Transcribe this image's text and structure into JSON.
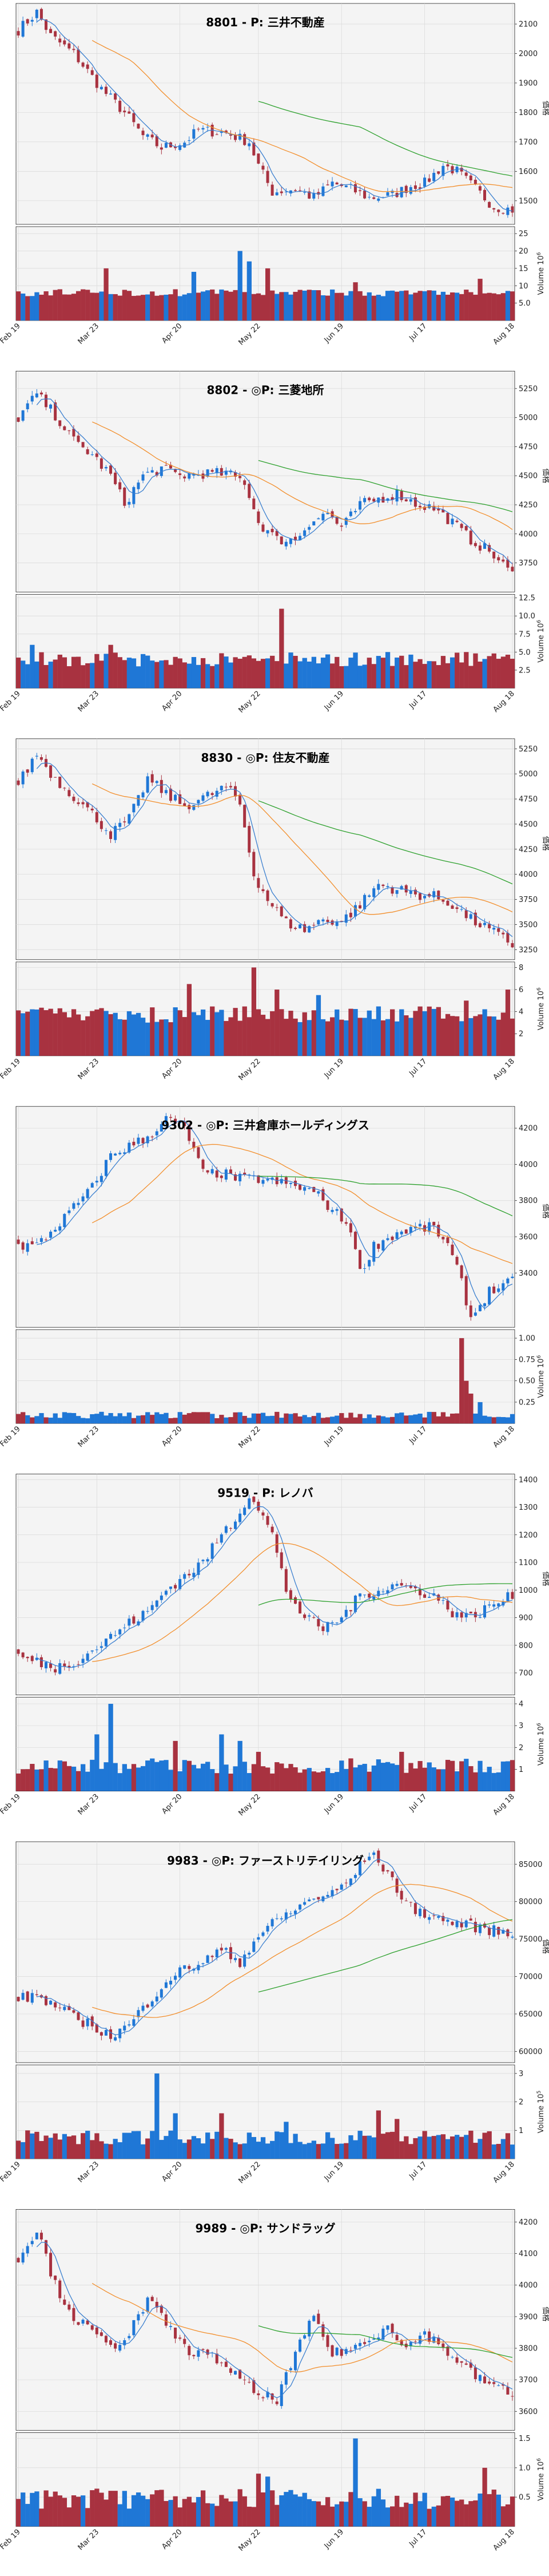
{
  "x_tick_labels": [
    "Feb 19",
    "Mar 23",
    "Apr 20",
    "May 22",
    "Jun 19",
    "Jul 17",
    "Aug 18"
  ],
  "price_axis_label": "価格",
  "volume_axis_label_base": "Volume  10",
  "colors": {
    "up": "#1f77d6",
    "down": "#a83240",
    "ma_short": "#3a7fcf",
    "ma_mid": "#f28e2b",
    "ma_long": "#2ca02c",
    "panel_bg": "#f4f4f4",
    "grid": "#d8d8d8"
  },
  "chart_data": [
    {
      "type": "candlestick",
      "title": "8801 - P: 三井不動産",
      "yticks": [
        1500,
        1600,
        1700,
        1800,
        1900,
        2000,
        2100
      ],
      "ylim": [
        1420,
        2170
      ],
      "vol_ticks": [
        "5.0",
        "10",
        "15",
        "20",
        "25"
      ],
      "vol_values": [
        5,
        10,
        15,
        20,
        25
      ],
      "vol_ylim": [
        0,
        27
      ],
      "vol_exp": "6",
      "close_path": [
        [
          0,
          2080
        ],
        [
          4,
          2140
        ],
        [
          7,
          2060
        ],
        [
          12,
          2000
        ],
        [
          18,
          1880
        ],
        [
          23,
          1800
        ],
        [
          27,
          1720
        ],
        [
          31,
          1680
        ],
        [
          36,
          1700
        ],
        [
          39,
          1740
        ],
        [
          45,
          1730
        ],
        [
          50,
          1700
        ],
        [
          52,
          1620
        ],
        [
          55,
          1530
        ],
        [
          60,
          1540
        ],
        [
          64,
          1510
        ],
        [
          68,
          1560
        ],
        [
          72,
          1540
        ],
        [
          76,
          1510
        ],
        [
          81,
          1520
        ],
        [
          85,
          1550
        ],
        [
          88,
          1560
        ],
        [
          92,
          1620
        ],
        [
          95,
          1600
        ],
        [
          99,
          1540
        ],
        [
          103,
          1480
        ],
        [
          107,
          1470
        ]
      ],
      "vol_level": [
        7,
        9
      ],
      "vol_spikes": [
        [
          19,
          15
        ],
        [
          38,
          14
        ],
        [
          48,
          20
        ],
        [
          50,
          17
        ],
        [
          54,
          15
        ],
        [
          73,
          11
        ],
        [
          100,
          12
        ]
      ],
      "ma_lines": [
        {
          "start": 16,
          "level": 0.0
        },
        {
          "start": 52,
          "level": 1.0
        }
      ]
    },
    {
      "type": "candlestick",
      "title": "8802 - ◎P: 三菱地所",
      "yticks": [
        3750,
        4000,
        4250,
        4500,
        4750,
        5000,
        5250
      ],
      "ylim": [
        3500,
        5400
      ],
      "vol_ticks": [
        "2.5",
        "5.0",
        "7.5",
        "10.0",
        "12.5"
      ],
      "vol_values": [
        2.5,
        5.0,
        7.5,
        10.0,
        12.5
      ],
      "vol_ylim": [
        0,
        13
      ],
      "vol_exp": "6",
      "close_path": [
        [
          0,
          5000
        ],
        [
          4,
          5200
        ],
        [
          8,
          5020
        ],
        [
          12,
          4800
        ],
        [
          16,
          4680
        ],
        [
          20,
          4500
        ],
        [
          23,
          4260
        ],
        [
          27,
          4500
        ],
        [
          31,
          4560
        ],
        [
          35,
          4500
        ],
        [
          40,
          4520
        ],
        [
          45,
          4520
        ],
        [
          49,
          4450
        ],
        [
          52,
          4100
        ],
        [
          56,
          3950
        ],
        [
          60,
          3950
        ],
        [
          63,
          4100
        ],
        [
          67,
          4180
        ],
        [
          70,
          4050
        ],
        [
          74,
          4250
        ],
        [
          78,
          4300
        ],
        [
          82,
          4350
        ],
        [
          86,
          4260
        ],
        [
          90,
          4220
        ],
        [
          94,
          4100
        ],
        [
          98,
          3950
        ],
        [
          102,
          3850
        ],
        [
          107,
          3650
        ]
      ],
      "vol_level": [
        3,
        5
      ],
      "vol_spikes": [
        [
          3,
          6
        ],
        [
          20,
          6
        ],
        [
          57,
          11
        ],
        [
          80,
          5
        ],
        [
          97,
          5
        ]
      ],
      "ma_lines": [
        {
          "start": 16,
          "level": 0.0
        },
        {
          "start": 52,
          "level": 1.0
        }
      ]
    },
    {
      "type": "candlestick",
      "title": "8830 - ◎P: 住友不動産",
      "yticks": [
        3250,
        3500,
        3750,
        4000,
        4250,
        4500,
        4750,
        5000,
        5250
      ],
      "ylim": [
        3150,
        5350
      ],
      "vol_ticks": [
        "2",
        "4",
        "6",
        "8"
      ],
      "vol_values": [
        2,
        4,
        6,
        8
      ],
      "vol_ylim": [
        0,
        8.5
      ],
      "vol_exp": "6",
      "close_path": [
        [
          0,
          4900
        ],
        [
          4,
          5200
        ],
        [
          8,
          4950
        ],
        [
          12,
          4780
        ],
        [
          16,
          4600
        ],
        [
          20,
          4400
        ],
        [
          24,
          4550
        ],
        [
          28,
          4950
        ],
        [
          32,
          4800
        ],
        [
          36,
          4680
        ],
        [
          40,
          4760
        ],
        [
          45,
          4870
        ],
        [
          48,
          4700
        ],
        [
          51,
          4000
        ],
        [
          54,
          3750
        ],
        [
          58,
          3520
        ],
        [
          62,
          3450
        ],
        [
          66,
          3550
        ],
        [
          70,
          3530
        ],
        [
          74,
          3700
        ],
        [
          78,
          3900
        ],
        [
          82,
          3850
        ],
        [
          86,
          3800
        ],
        [
          90,
          3780
        ],
        [
          94,
          3700
        ],
        [
          98,
          3550
        ],
        [
          102,
          3450
        ],
        [
          107,
          3300
        ]
      ],
      "vol_level": [
        3,
        4.5
      ],
      "vol_spikes": [
        [
          37,
          6.5
        ],
        [
          51,
          8
        ],
        [
          56,
          6
        ],
        [
          65,
          5.5
        ],
        [
          97,
          5
        ],
        [
          106,
          6
        ]
      ],
      "ma_lines": [
        {
          "start": 16,
          "level": 0.0
        },
        {
          "start": 52,
          "level": 1.0
        }
      ]
    },
    {
      "type": "candlestick",
      "title": "9302 - ◎P: 三井倉庫ホールディングス",
      "yticks": [
        3400,
        3600,
        3800,
        4000,
        4200
      ],
      "ylim": [
        3100,
        4320
      ],
      "vol_ticks": [
        "0.25",
        "0.50",
        "0.75",
        "1.00"
      ],
      "vol_values": [
        0.25,
        0.5,
        0.75,
        1.0
      ],
      "vol_ylim": [
        0,
        1.1
      ],
      "vol_exp": "6",
      "close_path": [
        [
          0,
          3550
        ],
        [
          4,
          3550
        ],
        [
          8,
          3650
        ],
        [
          12,
          3760
        ],
        [
          16,
          3870
        ],
        [
          20,
          4050
        ],
        [
          24,
          4100
        ],
        [
          28,
          4150
        ],
        [
          32,
          4250
        ],
        [
          36,
          4200
        ],
        [
          40,
          3950
        ],
        [
          44,
          3950
        ],
        [
          48,
          3920
        ],
        [
          52,
          3920
        ],
        [
          56,
          3900
        ],
        [
          60,
          3880
        ],
        [
          64,
          3850
        ],
        [
          68,
          3750
        ],
        [
          72,
          3650
        ],
        [
          74,
          3400
        ],
        [
          77,
          3550
        ],
        [
          82,
          3620
        ],
        [
          86,
          3650
        ],
        [
          90,
          3650
        ],
        [
          93,
          3550
        ],
        [
          96,
          3350
        ],
        [
          98,
          3150
        ],
        [
          102,
          3300
        ],
        [
          107,
          3350
        ]
      ],
      "vol_level": [
        0.06,
        0.14
      ],
      "vol_spikes": [
        [
          96,
          1.0
        ],
        [
          97,
          0.5
        ],
        [
          98,
          0.35
        ],
        [
          100,
          0.25
        ]
      ],
      "ma_lines": [
        {
          "start": 16,
          "level": 0.0
        },
        {
          "start": 52,
          "level": 1.0
        }
      ]
    },
    {
      "type": "candlestick",
      "title": "9519 - P: レノバ",
      "yticks": [
        700,
        800,
        900,
        1000,
        1100,
        1200,
        1300,
        1400
      ],
      "ylim": [
        620,
        1420
      ],
      "vol_ticks": [
        "1",
        "2",
        "3",
        "4"
      ],
      "vol_values": [
        1,
        2,
        3,
        4
      ],
      "vol_ylim": [
        0,
        4.3
      ],
      "vol_exp": "6",
      "close_path": [
        [
          0,
          760
        ],
        [
          4,
          740
        ],
        [
          8,
          720
        ],
        [
          12,
          740
        ],
        [
          16,
          780
        ],
        [
          20,
          830
        ],
        [
          24,
          880
        ],
        [
          28,
          920
        ],
        [
          32,
          1000
        ],
        [
          36,
          1050
        ],
        [
          40,
          1100
        ],
        [
          44,
          1200
        ],
        [
          48,
          1280
        ],
        [
          50,
          1350
        ],
        [
          52,
          1300
        ],
        [
          55,
          1200
        ],
        [
          58,
          1000
        ],
        [
          62,
          900
        ],
        [
          66,
          860
        ],
        [
          70,
          900
        ],
        [
          74,
          980
        ],
        [
          78,
          1000
        ],
        [
          82,
          1020
        ],
        [
          86,
          1000
        ],
        [
          90,
          980
        ],
        [
          94,
          920
        ],
        [
          98,
          900
        ],
        [
          102,
          940
        ],
        [
          107,
          980
        ]
      ],
      "vol_level": [
        0.8,
        1.5
      ],
      "vol_spikes": [
        [
          20,
          4.0
        ],
        [
          17,
          2.6
        ],
        [
          34,
          2.3
        ],
        [
          44,
          2.6
        ],
        [
          48,
          2.3
        ],
        [
          52,
          1.8
        ],
        [
          70,
          1.4
        ],
        [
          83,
          1.8
        ]
      ],
      "ma_lines": [
        {
          "start": 16,
          "level": 0.0
        },
        {
          "start": 52,
          "level": 1.0
        }
      ]
    },
    {
      "type": "candlestick",
      "title": "9983 - ◎P: ファーストリテイリング",
      "yticks": [
        60000,
        65000,
        70000,
        75000,
        80000,
        85000
      ],
      "ylim": [
        58500,
        88000
      ],
      "vol_ticks": [
        "1",
        "2",
        "3"
      ],
      "vol_values": [
        1,
        2,
        3
      ],
      "vol_ylim": [
        0,
        3.3
      ],
      "vol_exp": "5",
      "close_path": [
        [
          0,
          67000
        ],
        [
          4,
          67500
        ],
        [
          8,
          66000
        ],
        [
          12,
          64500
        ],
        [
          16,
          63500
        ],
        [
          20,
          62000
        ],
        [
          24,
          63500
        ],
        [
          28,
          66500
        ],
        [
          32,
          69500
        ],
        [
          36,
          71000
        ],
        [
          40,
          72000
        ],
        [
          44,
          73500
        ],
        [
          48,
          72000
        ],
        [
          52,
          75500
        ],
        [
          56,
          77500
        ],
        [
          60,
          79000
        ],
        [
          64,
          80500
        ],
        [
          68,
          81000
        ],
        [
          72,
          83000
        ],
        [
          76,
          86500
        ],
        [
          80,
          84000
        ],
        [
          84,
          79500
        ],
        [
          88,
          78500
        ],
        [
          92,
          77500
        ],
        [
          96,
          77000
        ],
        [
          100,
          76500
        ],
        [
          104,
          76000
        ],
        [
          107,
          75500
        ]
      ],
      "vol_level": [
        0.5,
        1.0
      ],
      "vol_spikes": [
        [
          30,
          3.0
        ],
        [
          34,
          1.6
        ],
        [
          44,
          1.6
        ],
        [
          58,
          1.3
        ],
        [
          78,
          1.7
        ],
        [
          82,
          1.4
        ]
      ],
      "ma_lines": [
        {
          "start": 16,
          "level": 0.0
        },
        {
          "start": 52,
          "level": 1.0
        }
      ]
    },
    {
      "type": "candlestick",
      "title": "9989 - ◎P: サンドラッグ",
      "yticks": [
        3600,
        3700,
        3800,
        3900,
        4000,
        4100,
        4200
      ],
      "ylim": [
        3540,
        4240
      ],
      "vol_ticks": [
        "0.5",
        "1.0",
        "1.5"
      ],
      "vol_values": [
        0.5,
        1.0,
        1.5
      ],
      "vol_ylim": [
        0,
        1.6
      ],
      "vol_exp": "6",
      "close_path": [
        [
          0,
          4080
        ],
        [
          4,
          4180
        ],
        [
          8,
          4000
        ],
        [
          12,
          3900
        ],
        [
          16,
          3850
        ],
        [
          20,
          3800
        ],
        [
          24,
          3850
        ],
        [
          28,
          3950
        ],
        [
          32,
          3880
        ],
        [
          36,
          3800
        ],
        [
          40,
          3780
        ],
        [
          44,
          3760
        ],
        [
          48,
          3700
        ],
        [
          52,
          3650
        ],
        [
          56,
          3640
        ],
        [
          60,
          3780
        ],
        [
          64,
          3900
        ],
        [
          68,
          3780
        ],
        [
          72,
          3800
        ],
        [
          76,
          3820
        ],
        [
          80,
          3880
        ],
        [
          84,
          3800
        ],
        [
          88,
          3850
        ],
        [
          92,
          3800
        ],
        [
          96,
          3750
        ],
        [
          100,
          3700
        ],
        [
          104,
          3680
        ],
        [
          107,
          3640
        ]
      ],
      "vol_level": [
        0.3,
        0.65
      ],
      "vol_spikes": [
        [
          52,
          0.9
        ],
        [
          54,
          0.85
        ],
        [
          73,
          1.5
        ],
        [
          101,
          1.0
        ]
      ],
      "ma_lines": [
        {
          "start": 16,
          "level": 0.0
        },
        {
          "start": 52,
          "level": 1.0
        }
      ]
    }
  ]
}
